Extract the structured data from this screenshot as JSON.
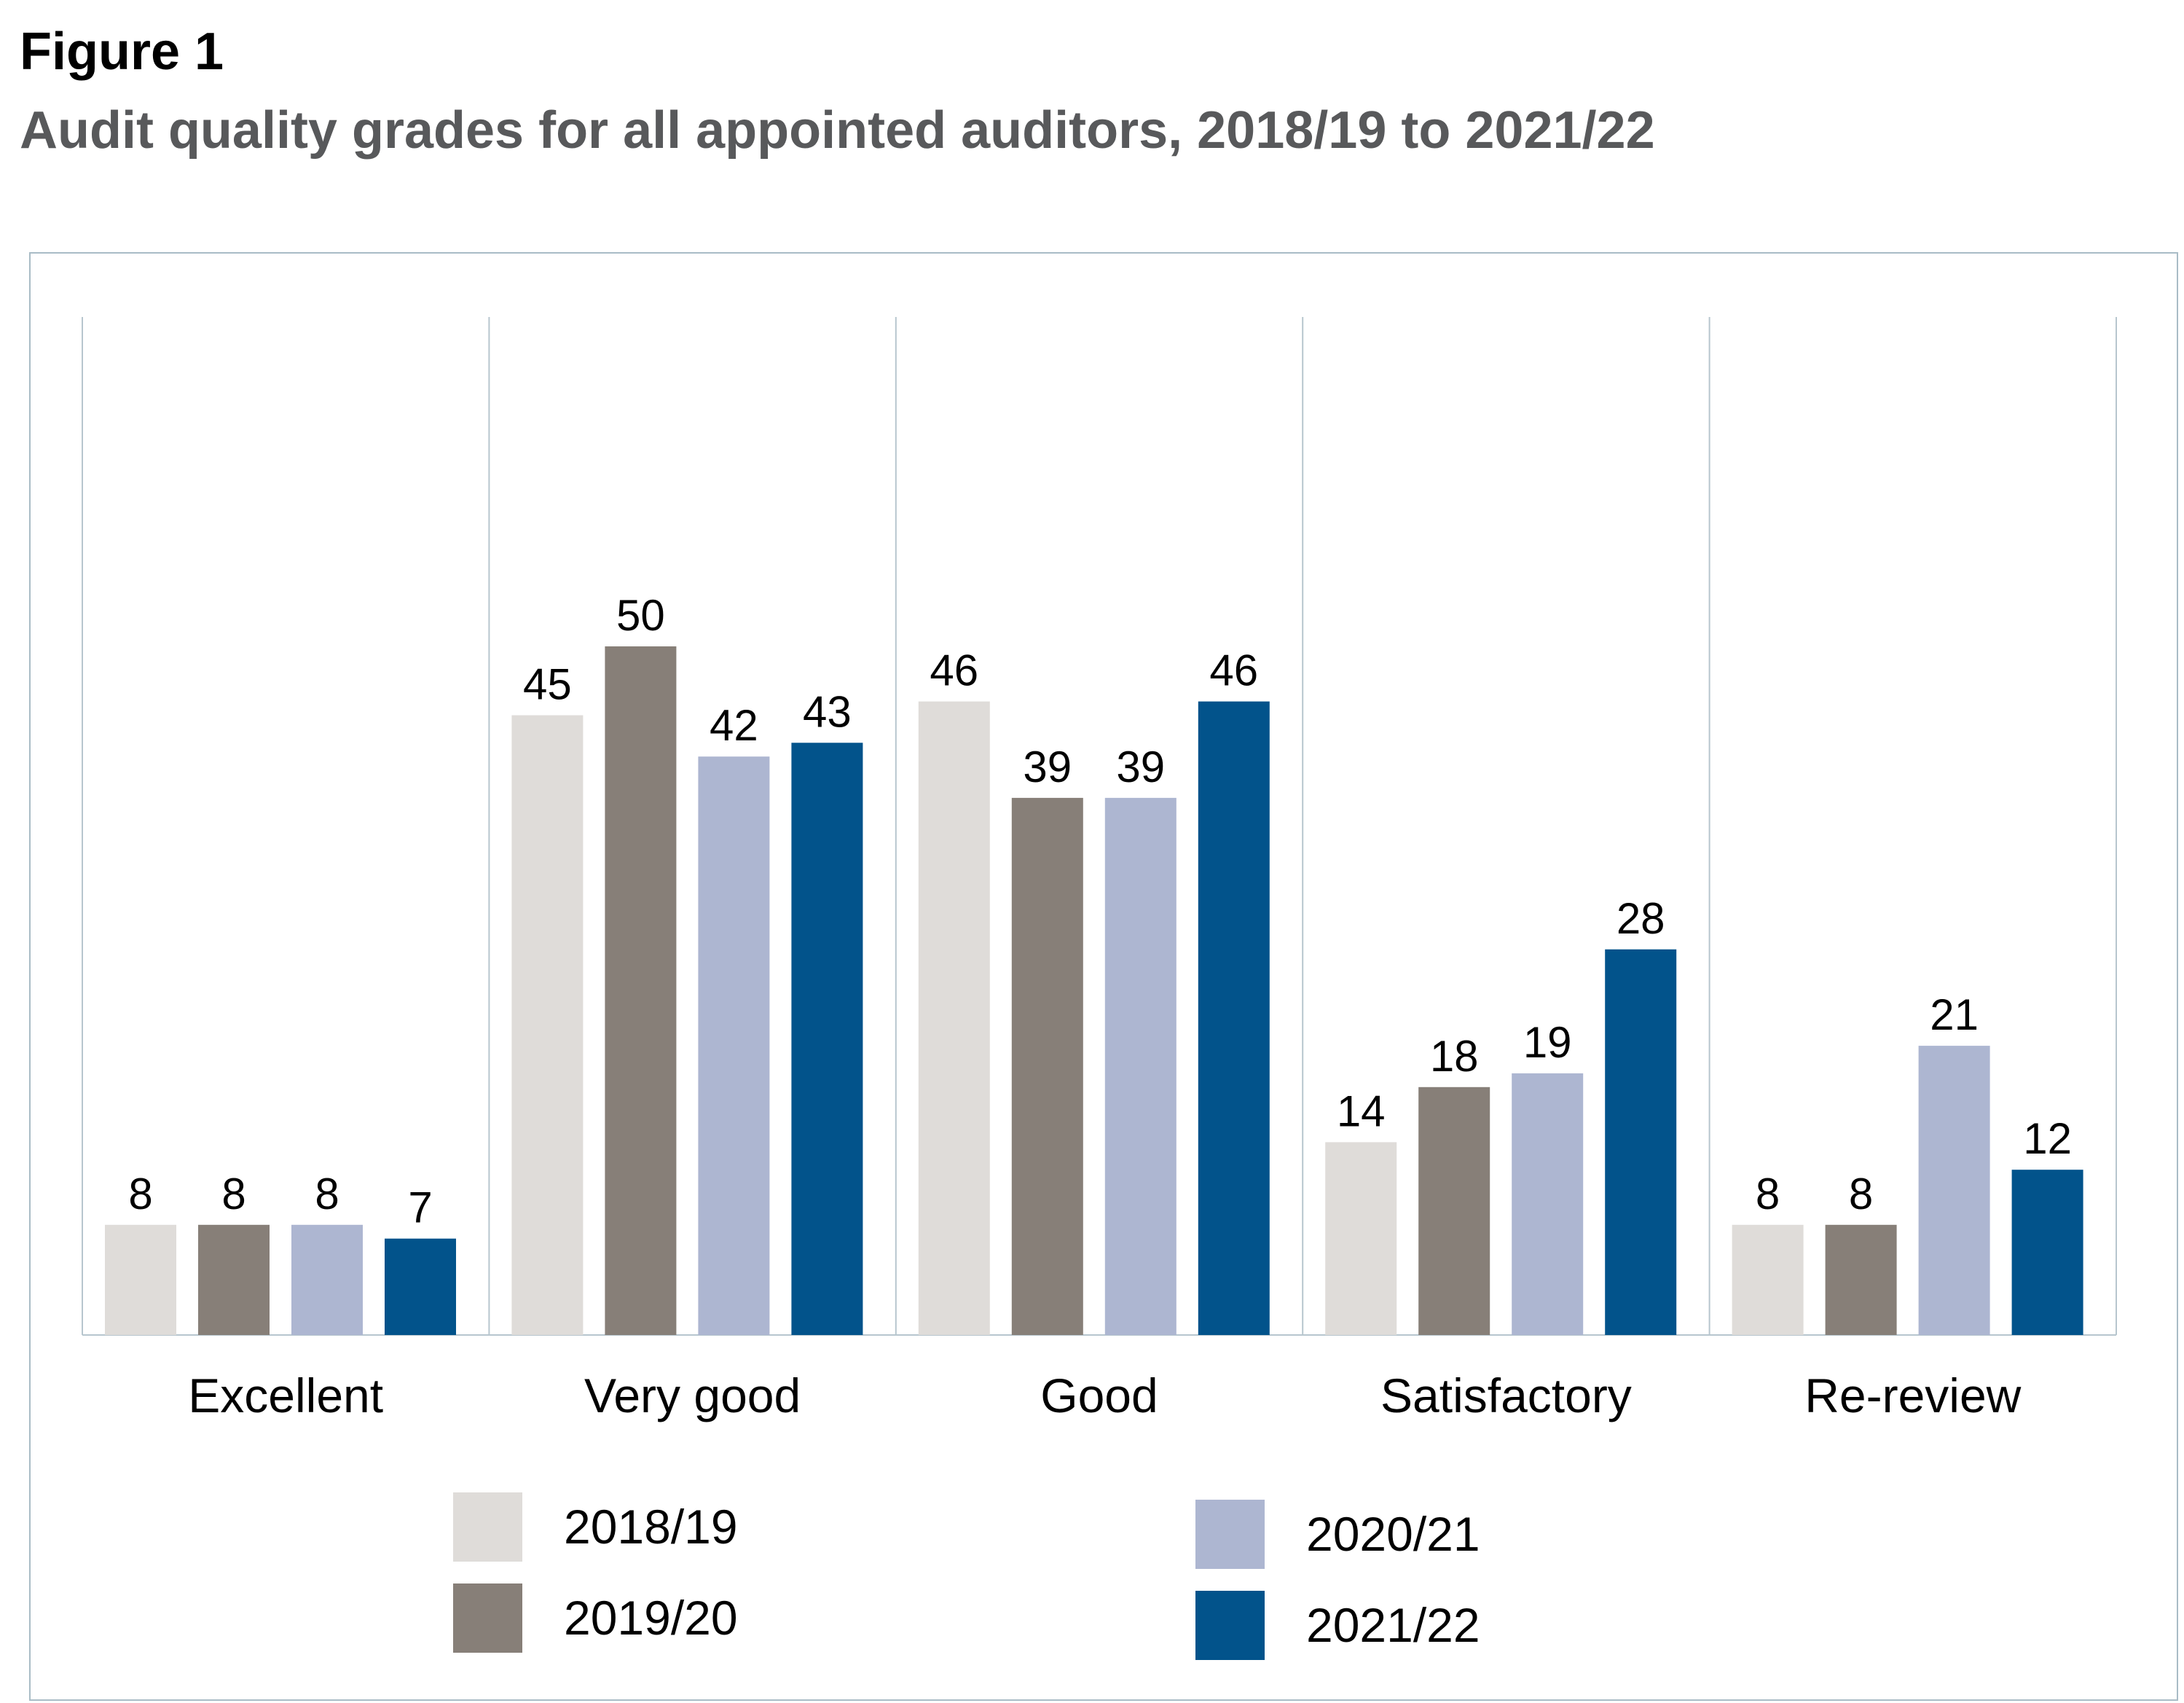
{
  "figure_label": "Figure 1",
  "title": "Audit quality grades for all appointed auditors, 2018/19 to 2021/22",
  "chart_data": {
    "type": "bar",
    "categories": [
      "Excellent",
      "Very good",
      "Good",
      "Satisfactory",
      "Re-review"
    ],
    "series": [
      {
        "name": "2018/19",
        "color": "#dfdcd9",
        "values": [
          8,
          45,
          46,
          14,
          8
        ]
      },
      {
        "name": "2019/20",
        "color": "#877f78",
        "values": [
          8,
          50,
          39,
          18,
          8
        ]
      },
      {
        "name": "2020/21",
        "color": "#adb6d1",
        "values": [
          8,
          42,
          39,
          19,
          21
        ]
      },
      {
        "name": "2021/22",
        "color": "#02538b",
        "values": [
          7,
          43,
          46,
          28,
          12
        ]
      }
    ],
    "ylim": [
      0,
      65
    ],
    "y_axis_visible": false,
    "data_labels": true,
    "grid": "vertical separators between categories",
    "legend": "bottom"
  }
}
